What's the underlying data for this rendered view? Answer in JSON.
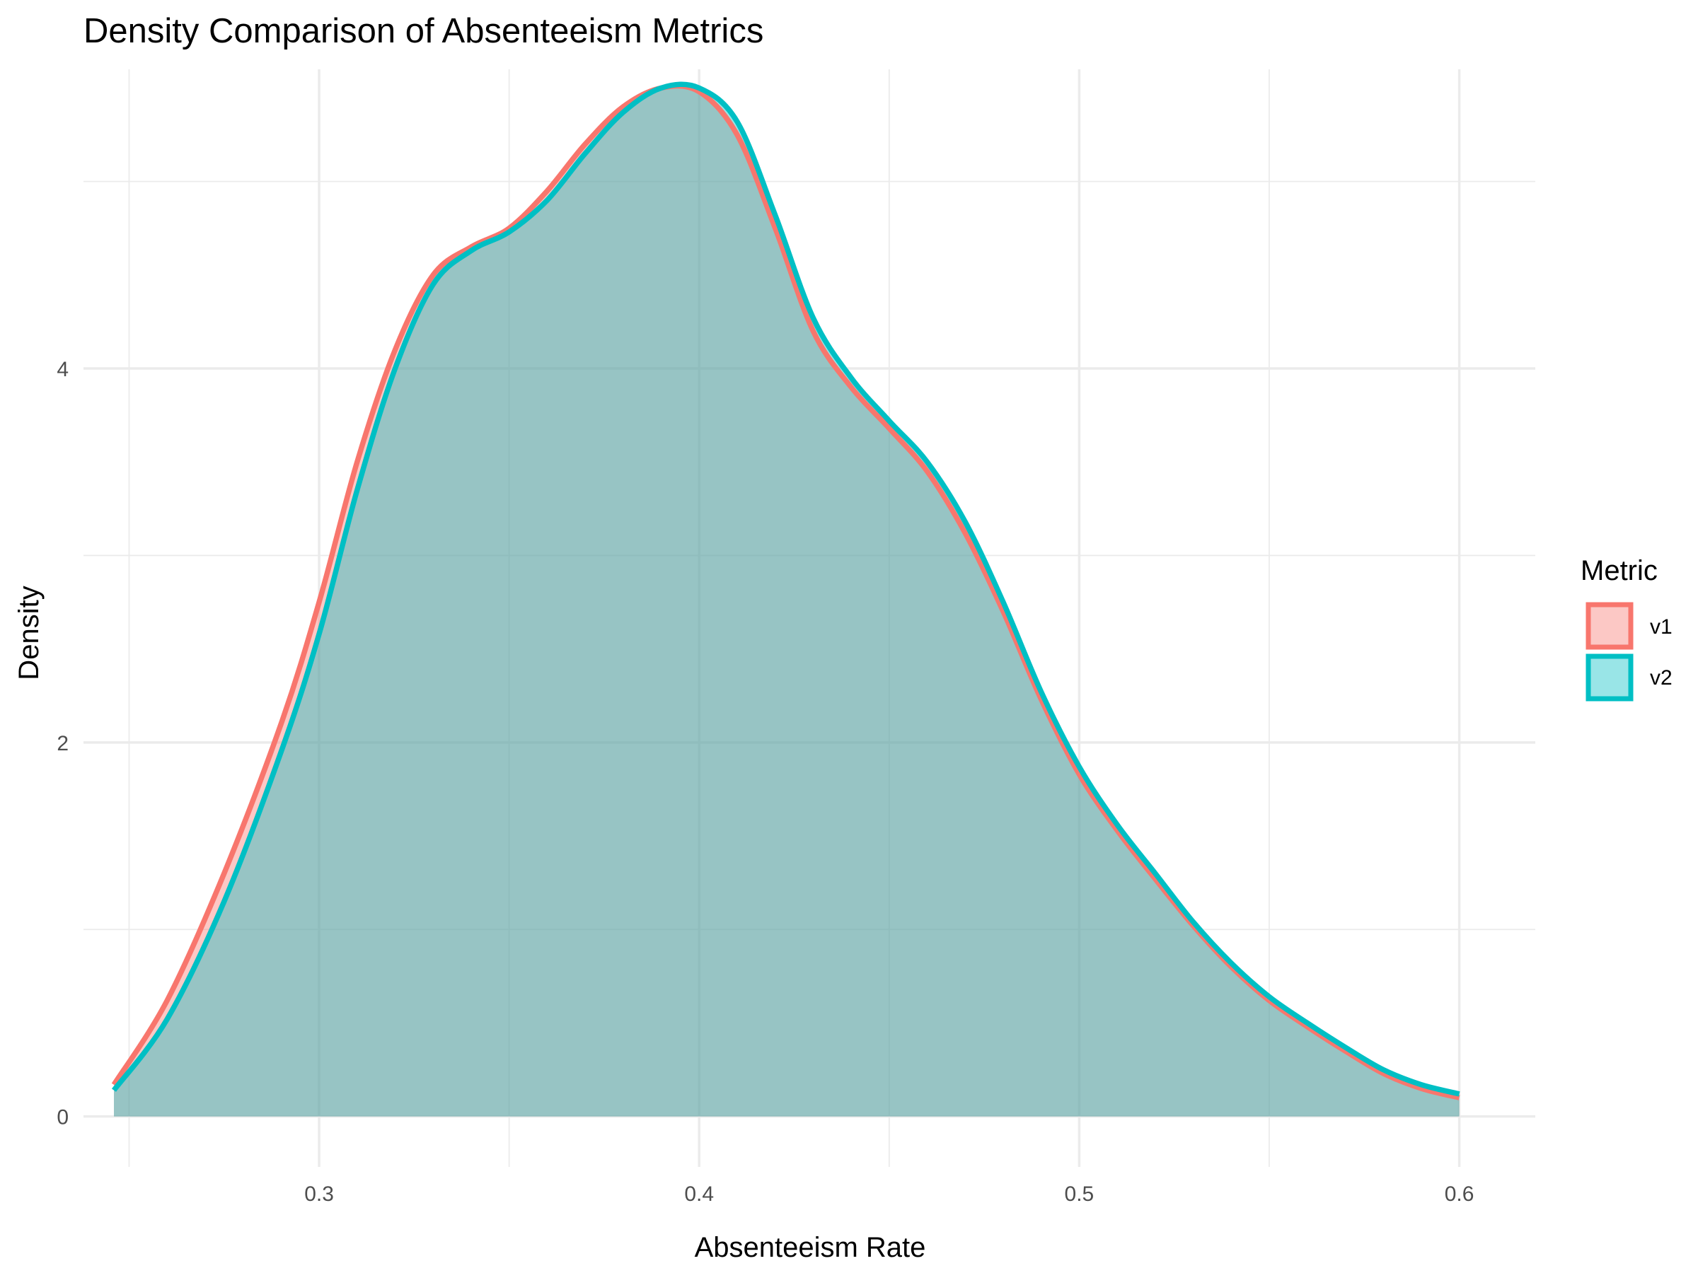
{
  "chart_data": {
    "type": "area",
    "title": "Density Comparison of Absenteeism Metrics",
    "xlabel": "Absenteeism Rate",
    "ylabel": "Density",
    "xlim": [
      0.238,
      0.62
    ],
    "ylim": [
      -0.27,
      5.6
    ],
    "x_ticks": [
      0.3,
      0.4,
      0.5,
      0.6
    ],
    "x_tick_labels": [
      "0.3",
      "0.4",
      "0.5",
      "0.6"
    ],
    "y_ticks": [
      0,
      2,
      4
    ],
    "y_tick_labels": [
      "0",
      "2",
      "4"
    ],
    "grid": true,
    "legend": {
      "title": "Metric",
      "position": "right"
    },
    "series": [
      {
        "name": "v1",
        "color": "#F8766D",
        "fill": "#F8766D",
        "fill_opacity": 0.4,
        "x": [
          0.246,
          0.26,
          0.275,
          0.29,
          0.3,
          0.31,
          0.32,
          0.33,
          0.34,
          0.35,
          0.36,
          0.37,
          0.38,
          0.39,
          0.4,
          0.41,
          0.42,
          0.43,
          0.44,
          0.45,
          0.46,
          0.47,
          0.48,
          0.49,
          0.5,
          0.51,
          0.52,
          0.53,
          0.54,
          0.55,
          0.56,
          0.57,
          0.58,
          0.59,
          0.6
        ],
        "y": [
          0.17,
          0.62,
          1.3,
          2.1,
          2.75,
          3.5,
          4.1,
          4.5,
          4.65,
          4.75,
          4.95,
          5.2,
          5.4,
          5.5,
          5.48,
          5.25,
          4.75,
          4.2,
          3.9,
          3.68,
          3.45,
          3.12,
          2.7,
          2.23,
          1.83,
          1.53,
          1.27,
          1.02,
          0.8,
          0.62,
          0.48,
          0.35,
          0.23,
          0.15,
          0.1
        ]
      },
      {
        "name": "v2",
        "color": "#00BFC4",
        "fill": "#00BFC4",
        "fill_opacity": 0.4,
        "x": [
          0.246,
          0.26,
          0.275,
          0.29,
          0.3,
          0.31,
          0.32,
          0.33,
          0.34,
          0.35,
          0.36,
          0.37,
          0.38,
          0.39,
          0.4,
          0.41,
          0.42,
          0.43,
          0.44,
          0.45,
          0.46,
          0.47,
          0.48,
          0.49,
          0.5,
          0.51,
          0.52,
          0.53,
          0.54,
          0.55,
          0.56,
          0.57,
          0.58,
          0.59,
          0.6
        ],
        "y": [
          0.14,
          0.52,
          1.15,
          1.95,
          2.58,
          3.35,
          4.0,
          4.45,
          4.63,
          4.73,
          4.9,
          5.15,
          5.37,
          5.5,
          5.5,
          5.32,
          4.82,
          4.27,
          3.95,
          3.72,
          3.5,
          3.18,
          2.75,
          2.27,
          1.87,
          1.56,
          1.3,
          1.04,
          0.82,
          0.64,
          0.5,
          0.37,
          0.25,
          0.17,
          0.12
        ]
      }
    ]
  }
}
